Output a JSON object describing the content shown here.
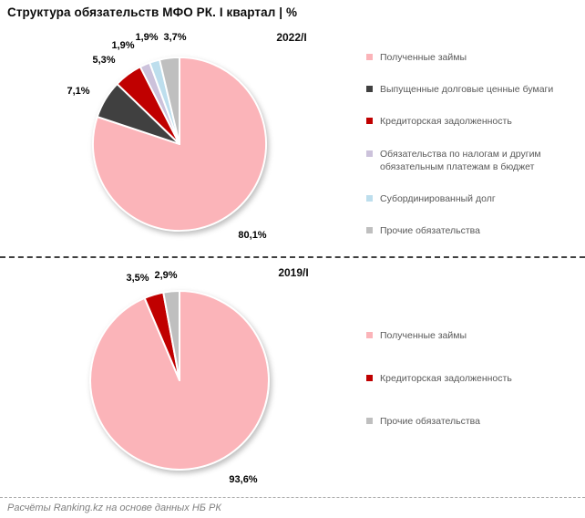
{
  "title": "Структура обязательств МФО РК. I квартал | %",
  "footer": "Расчёты Ranking.kz на основе данных НБ РК",
  "chart_data": [
    {
      "type": "pie",
      "title": "2022/I",
      "labels": [
        "Полученные займы",
        "Выпущенные долговые ценные бумаги",
        "Кредиторская задолженность",
        "Обязательства по налогам и другим обязательным платежам в бюджет",
        "Субординированный долг",
        "Прочие обязательства"
      ],
      "values": [
        80.1,
        7.1,
        5.3,
        1.9,
        1.9,
        3.7
      ],
      "value_labels": [
        "80,1%",
        "7,1%",
        "5,3%",
        "1,9%",
        "1,9%",
        "3,7%"
      ],
      "colors": [
        "#FBB4B9",
        "#404040",
        "#C00000",
        "#CCC2DB",
        "#BDDEED",
        "#BFBFBF"
      ],
      "start_angle_deg": 0,
      "direction": "clockwise",
      "legend_position": "right",
      "slice_border_color": "#ffffff"
    },
    {
      "type": "pie",
      "title": "2019/I",
      "labels": [
        "Полученные займы",
        "Кредиторская задолженность",
        "Прочие обязательства"
      ],
      "values": [
        93.6,
        3.5,
        2.9
      ],
      "value_labels": [
        "93,6%",
        "3,5%",
        "2,9%"
      ],
      "colors": [
        "#FBB4B9",
        "#C00000",
        "#BFBFBF"
      ],
      "start_angle_deg": 0,
      "direction": "clockwise",
      "legend_position": "right",
      "slice_border_color": "#ffffff"
    }
  ]
}
